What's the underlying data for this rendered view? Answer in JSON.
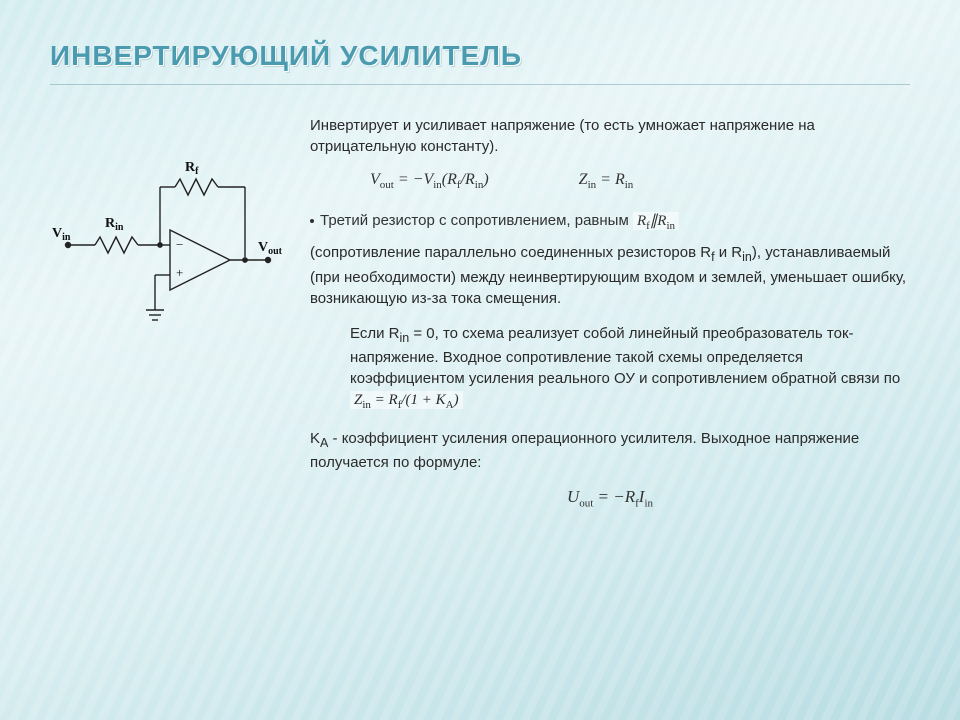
{
  "title": "ИНВЕРТИРУЮЩИЙ УСИЛИТЕЛЬ",
  "intro": "Инвертирует и усиливает напряжение (то есть умножает напряжение на отрицательную константу).",
  "eq1_html": "V<sub>out</sub> = −V<sub>in</sub>(R<sub>f</sub>/R<sub>in</sub>)",
  "eq2_html": "Z<sub>in</sub> = R<sub>in</sub>",
  "bullet_text": "Третий резистор с сопротивлением, равным ",
  "bullet_eq_html": "R<sub>f</sub>∥R<sub>in</sub>",
  "para2_html": "(сопротивление параллельно соединенных резисторов R<sub>f</sub> и R<sub>in</sub>), устанавливаемый (при необходимости) между неинвертирующим входом и землей, уменьшает ошибку, возникающую из-за тока смещения.",
  "para3_pre": "Если R",
  "para3_sub": "in",
  "para3_mid": " = 0, то схема реализует собой линейный преобразователь ток-напряжение. Входное сопротивление такой схемы определяется коэффициентом усиления реального ОУ и сопротивлением обратной связи по   ",
  "eq3_html": "Z<sub>in</sub> = R<sub>f</sub>/(1 + K<sub>A</sub>)",
  "para4_html": "K<sub>A</sub> - коэффициент усиления операционного усилителя. Выходное напряжение получается по формуле:",
  "eq4_html": "U<sub>out</sub> = −R<sub>f</sub>I<sub>in</sub>",
  "circuit": {
    "labels": {
      "vin": "V",
      "vin_sub": "in",
      "rin": "R",
      "rin_sub": "in",
      "rf": "R",
      "rf_sub": "f",
      "vout": "V",
      "vout_sub": "out",
      "minus": "−",
      "plus": "+"
    },
    "colors": {
      "stroke": "#222222",
      "text": "#111111"
    }
  }
}
